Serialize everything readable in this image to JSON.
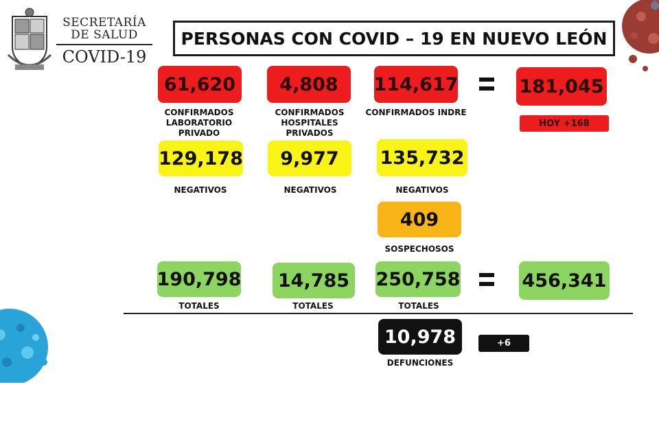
{
  "header": {
    "sec_line1": "SECRETARÍA",
    "sec_line2": "DE SALUD",
    "sec_line3": "COVID-19",
    "title": "PERSONAS CON COVID – 19 EN NUEVO LEÓN"
  },
  "confirmados": {
    "privado_value": "61,620",
    "privado_label": "CONFIRMADOS LABORATORIO PRIVADO",
    "hospitales_value": "4,808",
    "hospitales_label": "CONFIRMADOS HOSPITALES PRIVADOS",
    "indre_value": "114,617",
    "indre_label": "CONFIRMADOS INDRE",
    "total_value": "181,045",
    "hoy_label": "HOY +168"
  },
  "negativos": {
    "privado_value": "129,178",
    "hospitales_value": "9,977",
    "indre_value": "135,732",
    "label": "NEGATIVOS"
  },
  "sospechosos": {
    "value": "409",
    "label": "SOSPECHOSOS"
  },
  "totales": {
    "privado_value": "190,798",
    "hospitales_value": "14,785",
    "indre_value": "250,758",
    "grand_total": "456,341",
    "label": "TOTALES"
  },
  "defunciones": {
    "value": "10,978",
    "label": "DEFUNCIONES",
    "increment": "+6"
  },
  "colors": {
    "red": "#ee1d1d",
    "yellow": "#faf416",
    "orange": "#f9b418",
    "green": "#8cd560",
    "black": "#111111"
  }
}
